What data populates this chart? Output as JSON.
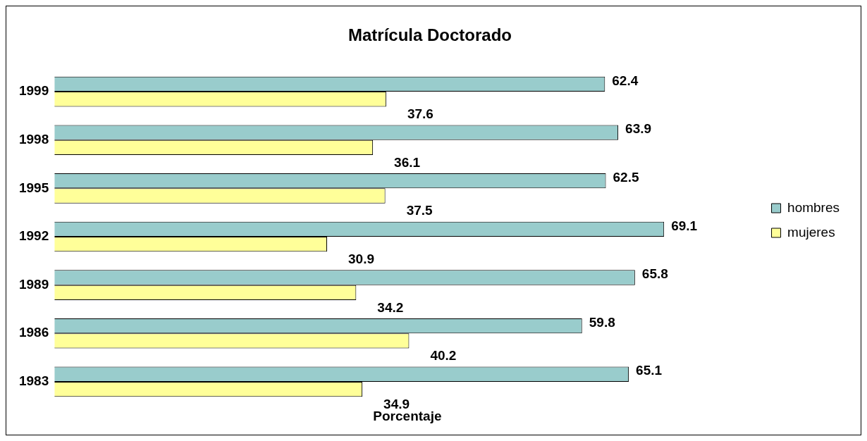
{
  "chart_data": {
    "type": "bar",
    "orientation": "horizontal",
    "title": "Matrícula Doctorado",
    "xlabel": "Porcentaje",
    "categories": [
      "1999",
      "1998",
      "1995",
      "1992",
      "1989",
      "1986",
      "1983"
    ],
    "series": [
      {
        "name": "hombres",
        "color": "#99cccc",
        "values": [
          62.4,
          63.9,
          62.5,
          69.1,
          65.8,
          59.8,
          65.1
        ]
      },
      {
        "name": "mujeres",
        "color": "#ffff99",
        "values": [
          37.6,
          36.1,
          37.5,
          30.9,
          34.2,
          40.2,
          34.9
        ]
      }
    ],
    "data_labels": true,
    "legend": "right",
    "grid": false
  }
}
